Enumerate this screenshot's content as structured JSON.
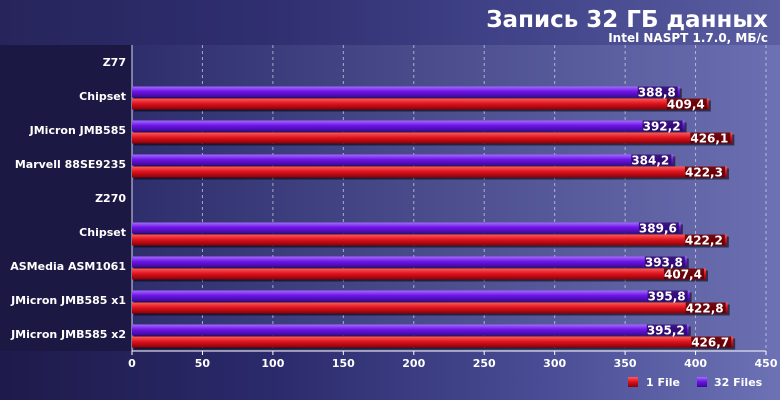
{
  "chart_data": {
    "type": "bar",
    "orientation": "horizontal",
    "title": "Запись 32 ГБ данных",
    "subtitle": "Intel NASPT 1.7.0, МБ/с",
    "categories": [
      "Z77",
      "Chipset",
      "JMicron JMB585",
      "Marvell 88SE9235",
      "Z270",
      "Chipset",
      "ASMedia ASM1061",
      "JMicron JMB585 x1",
      "JMicron JMB585 x2"
    ],
    "series": [
      {
        "name": "1 File",
        "color": "#e0141e",
        "values": [
          null,
          409.4,
          426.1,
          422.3,
          null,
          422.2,
          407.4,
          422.8,
          426.7
        ],
        "labels": [
          "",
          "409,4",
          "426,1",
          "422,3",
          "",
          "422,2",
          "407,4",
          "422,8",
          "426,7"
        ]
      },
      {
        "name": "32 Files",
        "color": "#6f14e6",
        "values": [
          null,
          388.8,
          392.2,
          384.2,
          null,
          389.6,
          393.8,
          395.8,
          395.2
        ],
        "labels": [
          "",
          "388,8",
          "392,2",
          "384,2",
          "",
          "389,6",
          "393,8",
          "395,8",
          "395,2"
        ]
      }
    ],
    "xlim": [
      0,
      450
    ],
    "xticks": [
      "0",
      "50",
      "100",
      "150",
      "200",
      "250",
      "300",
      "350",
      "400",
      "450"
    ],
    "grid": true,
    "legend_position": "bottom-right"
  }
}
